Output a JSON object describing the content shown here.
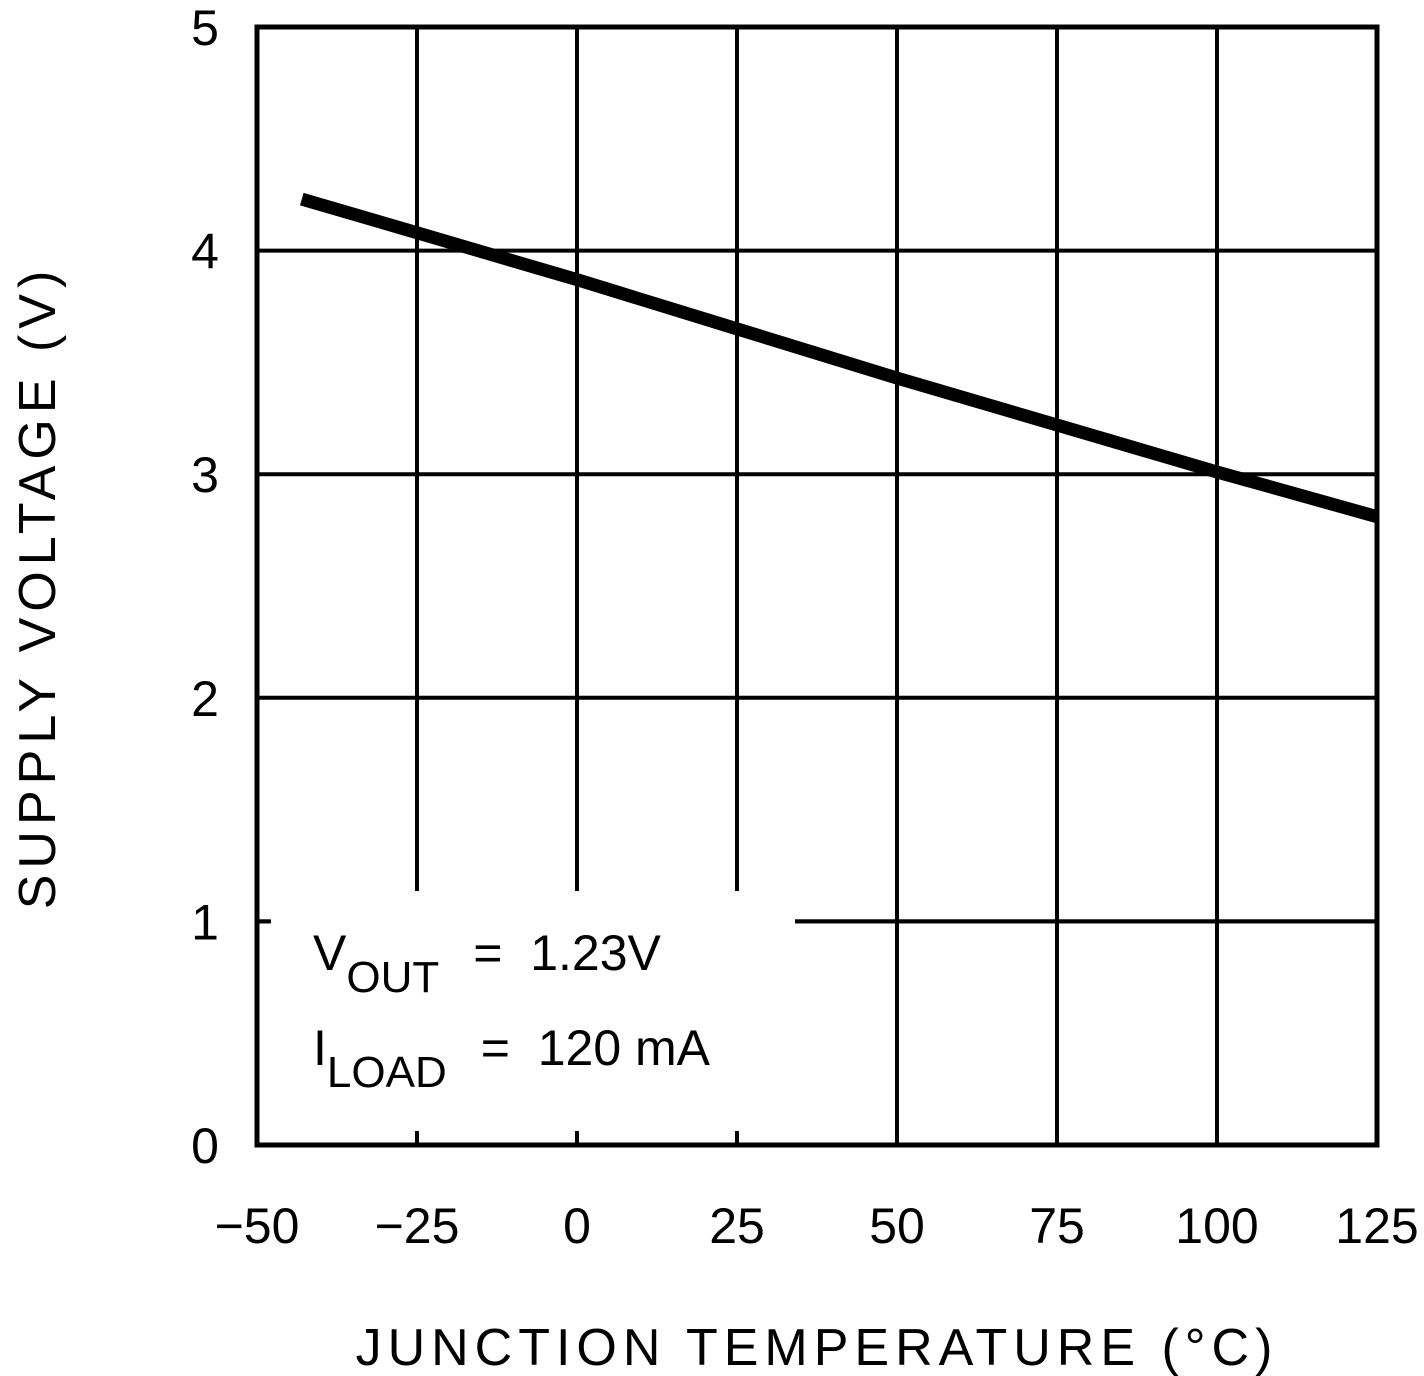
{
  "chart_data": {
    "type": "line",
    "title": "",
    "xlabel": "JUNCTION TEMPERATURE (°C)",
    "ylabel": "SUPPLY VOLTAGE (V)",
    "xlim": [
      -50,
      125
    ],
    "ylim": [
      0,
      5
    ],
    "xticks": [
      -50,
      -25,
      0,
      25,
      50,
      75,
      100,
      125
    ],
    "yticks": [
      0,
      1,
      2,
      3,
      4,
      5
    ],
    "xtick_labels": [
      "−50",
      "−25",
      "0",
      "25",
      "50",
      "75",
      "100",
      "125"
    ],
    "ytick_labels": [
      "0",
      "1",
      "2",
      "3",
      "4",
      "5"
    ],
    "grid": true,
    "legend": null,
    "series": [
      {
        "name": "Supply Voltage",
        "x": [
          -43,
          -25,
          0,
          25,
          50,
          75,
          100,
          125
        ],
        "y": [
          4.23,
          4.08,
          3.87,
          3.65,
          3.43,
          3.22,
          3.01,
          2.81
        ]
      }
    ],
    "annotations": [
      {
        "main": "V",
        "sub": "OUT",
        "value": "=  1.23V"
      },
      {
        "main": "I",
        "sub": "LOAD",
        "value": "=  120 mA"
      }
    ]
  },
  "colors": {
    "background": "#ffffff",
    "ink": "#000000"
  }
}
